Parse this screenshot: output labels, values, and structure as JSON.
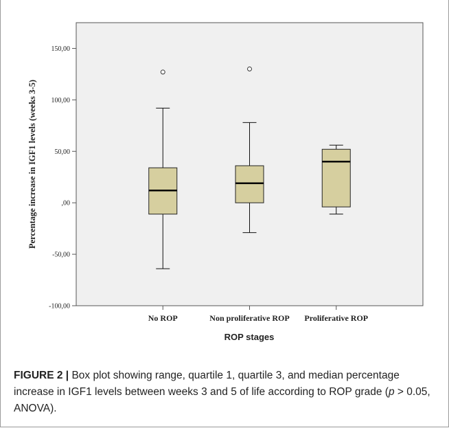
{
  "chart_data": {
    "type": "box",
    "xlabel": "ROP stages",
    "ylabel": "Percentage increase in IGF1 levels (weeks 3-5)",
    "ylim": [
      -100,
      175
    ],
    "yticks": [
      -100,
      -50,
      0,
      50,
      100,
      150
    ],
    "ytick_labels": [
      "-100,00",
      "-50,00",
      ",00",
      "50,00",
      "100,00",
      "150,00"
    ],
    "categories": [
      "No ROP",
      "Non proliferative ROP",
      "Proliferative ROP"
    ],
    "boxes": [
      {
        "category": "No ROP",
        "whisker_low": -64,
        "q1": -11,
        "median": 12,
        "q3": 34,
        "whisker_high": 92,
        "outliers": [
          127
        ]
      },
      {
        "category": "Non proliferative ROP",
        "whisker_low": -29,
        "q1": 0,
        "median": 19,
        "q3": 36,
        "whisker_high": 78,
        "outliers": [
          130
        ]
      },
      {
        "category": "Proliferative ROP",
        "whisker_low": -11,
        "q1": -4,
        "median": 40,
        "q3": 52,
        "whisker_high": 56,
        "outliers": []
      }
    ],
    "grid": false,
    "colors": {
      "box_fill": "#d6cf9f",
      "plot_bg": "#f0f0f0"
    }
  },
  "caption": {
    "lead": "FIGURE 2 |",
    "text_before_p": " Box plot showing range, quartile 1, quartile 3, and median percentage increase in IGF1 levels between weeks 3 and 5 of life according to ROP grade (",
    "p": "p",
    "text_after_p": " > 0.05, ANOVA)."
  }
}
